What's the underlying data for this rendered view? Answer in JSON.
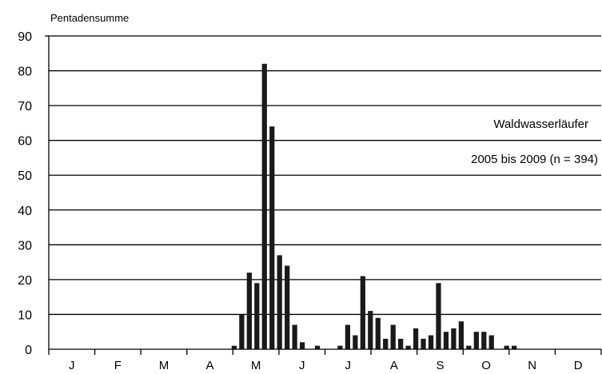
{
  "chart_data": {
    "type": "bar",
    "title": "",
    "ylabel": "Pentadensumme",
    "xlabel": "",
    "ylim": [
      0,
      90
    ],
    "yticks": [
      "0",
      "10",
      "20",
      "30",
      "40",
      "50",
      "60",
      "70",
      "80",
      "90"
    ],
    "month_labels": [
      "J",
      "F",
      "M",
      "A",
      "M",
      "J",
      "J",
      "A",
      "S",
      "O",
      "N",
      "D"
    ],
    "grid": true,
    "annotations": [
      "Waldwasserläufer",
      "2005 bis 2009 (n = 394)"
    ],
    "bar_color": "#1a1a1a",
    "pentads": [
      1,
      2,
      3,
      4,
      5,
      6,
      7,
      8,
      9,
      10,
      11,
      12,
      13,
      14,
      15,
      16,
      17,
      18,
      19,
      20,
      21,
      22,
      23,
      24,
      25,
      26,
      27,
      28,
      29,
      30,
      31,
      32,
      33,
      34,
      35,
      36,
      37,
      38,
      39,
      40,
      41,
      42,
      43,
      44,
      45,
      46,
      47,
      48,
      49,
      50,
      51,
      52,
      53,
      54,
      55,
      56,
      57,
      58,
      59,
      60,
      61,
      62,
      63,
      64,
      65,
      66,
      67,
      68,
      69,
      70,
      71,
      72,
      73
    ],
    "values": [
      0,
      0,
      0,
      0,
      0,
      0,
      0,
      0,
      0,
      0,
      0,
      0,
      0,
      0,
      0,
      0,
      0,
      0,
      0,
      0,
      0,
      0,
      0,
      0,
      1,
      10,
      22,
      19,
      82,
      64,
      27,
      24,
      7,
      2,
      0,
      1,
      0,
      0,
      1,
      7,
      4,
      21,
      11,
      9,
      3,
      7,
      3,
      1,
      6,
      3,
      4,
      19,
      5,
      6,
      8,
      1,
      5,
      5,
      4,
      0,
      1,
      1,
      0,
      0,
      0,
      0,
      0,
      0,
      0,
      0,
      0,
      0,
      0
    ]
  }
}
